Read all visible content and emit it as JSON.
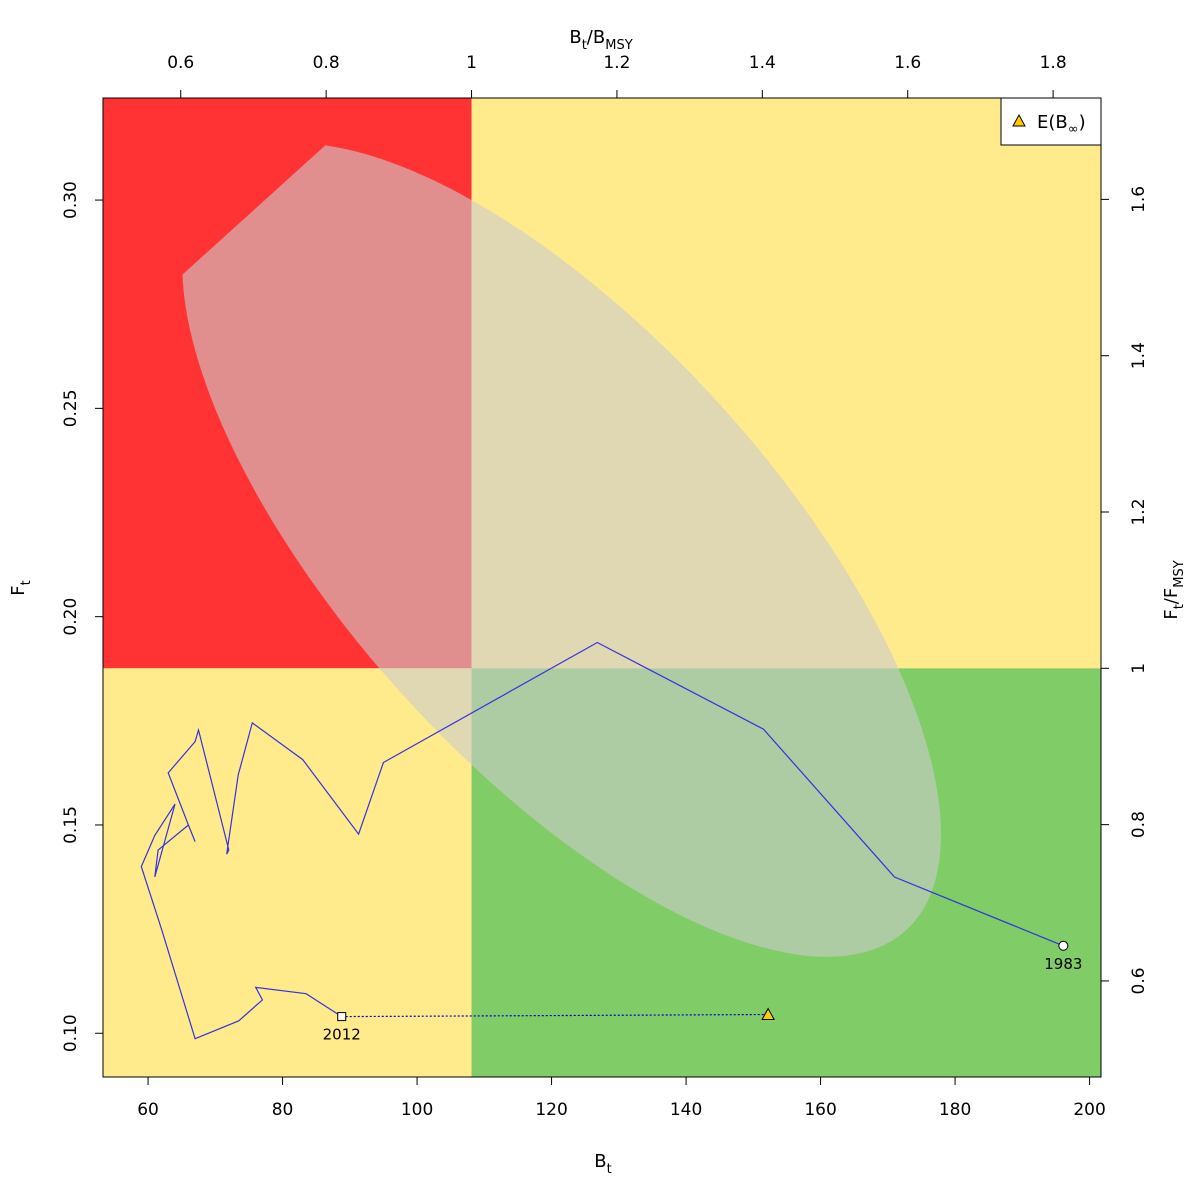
{
  "chart_data": {
    "type": "scatter",
    "colors": {
      "red_zone": "#ff3333",
      "yellow_zone": "#ffeb8c",
      "green_zone": "#80cc66",
      "ellipse": "#cccccc",
      "trajectory": "#3333dd",
      "forecast": "#0000cc",
      "expected_marker": "#ffcc00"
    },
    "x_axis": {
      "label_main": "B",
      "label_sub": "t",
      "range": [
        53.3,
        201.7
      ],
      "ticks": [
        60,
        80,
        100,
        120,
        140,
        160,
        180,
        200
      ],
      "tick_labels": [
        "60",
        "80",
        "100",
        "120",
        "140",
        "160",
        "180",
        "200"
      ]
    },
    "y_axis": {
      "label_main": "F",
      "label_sub": "t",
      "range": [
        0.0895,
        0.3245
      ],
      "ticks": [
        0.1,
        0.15,
        0.2,
        0.25,
        0.3
      ],
      "tick_labels": [
        "0.10",
        "0.15",
        "0.20",
        "0.25",
        "0.30"
      ]
    },
    "x_axis_top": {
      "label_main_1": "B",
      "label_sub_1": "t",
      "label_sep": "/",
      "label_main_2": "B",
      "label_sub_2": "MSY",
      "ticks": [
        0.6,
        0.8,
        1.0,
        1.2,
        1.4,
        1.6,
        1.8
      ],
      "tick_labels": [
        "0.6",
        "0.8",
        "1",
        "1.2",
        "1.4",
        "1.6",
        "1.8"
      ]
    },
    "y_axis_right": {
      "label_main_1": "F",
      "label_sub_1": "t",
      "label_sep": "/",
      "label_main_2": "F",
      "label_sub_2": "MSY",
      "ticks": [
        0.6,
        0.8,
        1.0,
        1.2,
        1.4,
        1.6
      ],
      "tick_labels": [
        "0.6",
        "0.8",
        "1",
        "1.2",
        "1.4",
        "1.6"
      ]
    },
    "reference": {
      "Bmsy": 108.1,
      "Fmsy": 0.1876
    },
    "trajectory": {
      "x": [
        196.1,
        171.0,
        151.5,
        126.8,
        95.0,
        91.3,
        83.0,
        75.5,
        73.4,
        71.7,
        72.0,
        67.5,
        67.0,
        63.0,
        66.0,
        67.0,
        66.0,
        61.5,
        61.0,
        64.0,
        61.0,
        59.0,
        62.0,
        67.0,
        73.5,
        77.0,
        76.0,
        83.5,
        88.8
      ],
      "y": [
        0.121,
        0.1375,
        0.173,
        0.1938,
        0.165,
        0.1478,
        0.1657,
        0.1745,
        0.162,
        0.143,
        0.144,
        0.1728,
        0.17,
        0.1625,
        0.15,
        0.146,
        0.15,
        0.144,
        0.1375,
        0.155,
        0.1475,
        0.14,
        0.125,
        0.0987,
        0.103,
        0.108,
        0.111,
        0.1095,
        0.104
      ]
    },
    "start_point": {
      "x": 196.1,
      "y": 0.121,
      "label": "1983"
    },
    "end_point": {
      "x": 88.8,
      "y": 0.104,
      "label": "2012"
    },
    "expected_equilibrium": {
      "x": 152.2,
      "y": 0.1045,
      "legend": "E(B",
      "legend_sub": "∞",
      "legend_close": ")"
    },
    "confidence_ellipse": {
      "cx": 121.5,
      "cy": 0.216,
      "rx_px": 513,
      "ry_px": 215,
      "angle_deg": 47.85
    }
  }
}
